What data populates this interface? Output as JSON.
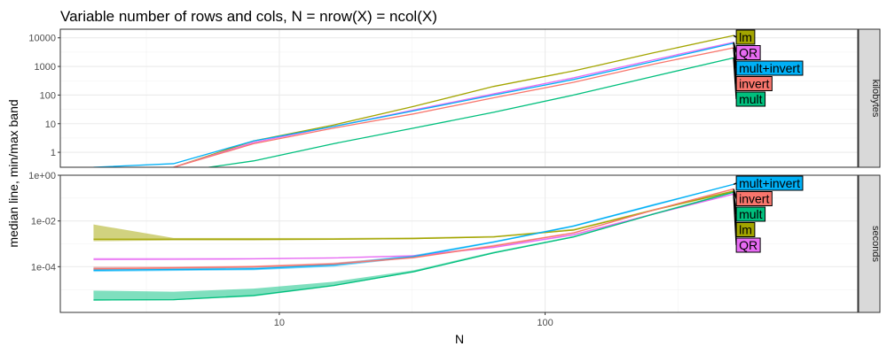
{
  "chart_data": {
    "type": "line",
    "title": "Variable number of rows and cols, N = nrow(X) = ncol(X)",
    "xlabel": "N",
    "ylabel": "median line, min/max band",
    "x_scale": "log10",
    "xlim": [
      1.5,
      1500
    ],
    "x_ticks": [
      10,
      100
    ],
    "x_tick_labels": [
      "10",
      "100"
    ],
    "legend": "none (direct labels at series ends)",
    "grid": true,
    "colors": {
      "lm": "#A3A500",
      "QR": "#E76BF3",
      "mult+invert": "#00B0F6",
      "invert": "#F8766D",
      "mult": "#00BF7D"
    },
    "panels": [
      {
        "strip": "kilobytes",
        "y_scale": "log10",
        "ylim": [
          0.3,
          20000
        ],
        "y_ticks": [
          1,
          10,
          100,
          1000,
          10000
        ],
        "y_tick_labels": [
          "1",
          "10",
          "100",
          "1000",
          "10000"
        ],
        "label_order": [
          "lm",
          "QR",
          "mult+invert",
          "invert",
          "mult"
        ],
        "series": [
          {
            "name": "lm",
            "x": [
              2,
              4,
              8,
              16,
              32,
              64,
              128,
              256,
              512
            ],
            "median": [
              0.2,
              0.3,
              2.5,
              9,
              40,
              200,
              700,
              3000,
              12000
            ]
          },
          {
            "name": "QR",
            "x": [
              2,
              4,
              8,
              16,
              32,
              64,
              128,
              256,
              512
            ],
            "median": [
              0.2,
              0.3,
              2.2,
              8,
              30,
              110,
              400,
              1700,
              7000
            ]
          },
          {
            "name": "mult+invert",
            "x": [
              2,
              4,
              8,
              16,
              32,
              64,
              128,
              256,
              512
            ],
            "median": [
              0.3,
              0.4,
              2.5,
              8,
              28,
              100,
              350,
              1500,
              6500
            ]
          },
          {
            "name": "invert",
            "x": [
              2,
              4,
              8,
              16,
              32,
              64,
              128,
              256,
              512
            ],
            "median": [
              0.2,
              0.3,
              2,
              7,
              22,
              80,
              280,
              1200,
              4500
            ]
          },
          {
            "name": "mult",
            "x": [
              2,
              4,
              8,
              16,
              32,
              64,
              128,
              256,
              512
            ],
            "median": [
              0.1,
              0.2,
              0.5,
              2,
              7,
              25,
              100,
              450,
              2000
            ]
          }
        ]
      },
      {
        "strip": "seconds",
        "y_scale": "log10",
        "ylim": [
          1e-06,
          1
        ],
        "y_ticks": [
          0.0001,
          0.01,
          1
        ],
        "y_tick_labels": [
          "1e-04",
          "1e-02",
          "1e+00"
        ],
        "label_order": [
          "mult+invert",
          "invert",
          "mult",
          "lm",
          "QR"
        ],
        "series": [
          {
            "name": "lm",
            "x": [
              2,
              4,
              8,
              16,
              32,
              64,
              128,
              256,
              512
            ],
            "median": [
              0.0016,
              0.0016,
              0.0016,
              0.0016,
              0.0017,
              0.002,
              0.004,
              0.03,
              0.2
            ],
            "min": [
              0.0013,
              0.0014,
              0.0014,
              0.0015,
              0.0016,
              0.0019,
              0.0038,
              0.028,
              0.18
            ],
            "max": [
              0.007,
              0.0018,
              0.0018,
              0.0018,
              0.0019,
              0.0022,
              0.0045,
              0.033,
              0.22
            ]
          },
          {
            "name": "QR",
            "x": [
              2,
              4,
              8,
              16,
              32,
              64,
              128,
              256,
              512
            ],
            "median": [
              0.00021,
              0.00021,
              0.00022,
              0.00024,
              0.0003,
              0.0007,
              0.0025,
              0.02,
              0.15
            ],
            "min": [
              0.00019,
              0.0002,
              0.00021,
              0.00023,
              0.00028,
              0.00065,
              0.0023,
              0.019,
              0.14
            ],
            "max": [
              0.00024,
              0.00024,
              0.00024,
              0.00026,
              0.00032,
              0.00075,
              0.0027,
              0.022,
              0.16
            ]
          },
          {
            "name": "mult+invert",
            "x": [
              2,
              4,
              8,
              16,
              32,
              64,
              128,
              256,
              512
            ],
            "median": [
              7e-05,
              7.5e-05,
              8e-05,
              0.00012,
              0.00028,
              0.0012,
              0.006,
              0.05,
              0.4
            ],
            "min": [
              6e-05,
              6.5e-05,
              7e-05,
              0.0001,
              0.00025,
              0.0011,
              0.0055,
              0.045,
              0.38
            ],
            "max": [
              9e-05,
              9e-05,
              0.0001,
              0.00014,
              0.00032,
              0.0013,
              0.0065,
              0.055,
              0.42
            ]
          },
          {
            "name": "invert",
            "x": [
              2,
              4,
              8,
              16,
              32,
              64,
              128,
              256,
              512
            ],
            "median": [
              8e-05,
              9e-05,
              0.0001,
              0.00013,
              0.00025,
              0.0008,
              0.003,
              0.03,
              0.25
            ],
            "min": [
              7e-05,
              8e-05,
              9e-05,
              0.00012,
              0.00023,
              0.00075,
              0.0028,
              0.028,
              0.23
            ],
            "max": [
              0.0001,
              0.0001,
              0.00011,
              0.00015,
              0.00028,
              0.0009,
              0.0032,
              0.032,
              0.27
            ]
          },
          {
            "name": "mult",
            "x": [
              2,
              4,
              8,
              16,
              32,
              64,
              128,
              256,
              512
            ],
            "median": [
              3.5e-06,
              3.6e-06,
              5.5e-06,
              1.5e-05,
              6e-05,
              0.0004,
              0.002,
              0.02,
              0.18
            ],
            "min": [
              3.3e-06,
              3.4e-06,
              5e-06,
              1.4e-05,
              5.7e-05,
              0.00038,
              0.0019,
              0.019,
              0.17
            ],
            "max": [
              9e-06,
              8e-06,
              1.1e-05,
              2.2e-05,
              7e-05,
              0.00045,
              0.0022,
              0.022,
              0.2
            ]
          }
        ]
      }
    ]
  }
}
